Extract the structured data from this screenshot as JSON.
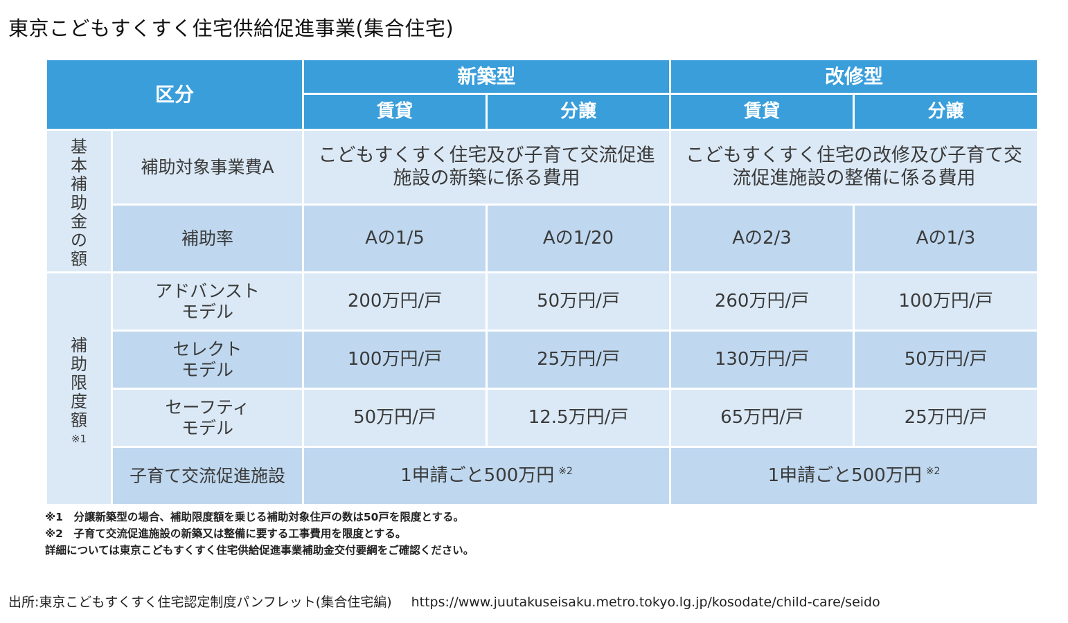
{
  "title": "東京こどもすくすく住宅供給促進事業(集合住宅)",
  "table": {
    "header": {
      "kubun": "区分",
      "shinchiku": "新築型",
      "kaishu": "改修型",
      "chintai": "賃貸",
      "bunjo": "分譲"
    },
    "kihon_group": [
      "基",
      "本",
      "補",
      "助",
      "金",
      "の",
      "額"
    ],
    "gendo_group": [
      "補",
      "助",
      "限",
      "度",
      "額"
    ],
    "gendo_note": "※1",
    "rows": {
      "jigyohi_label": "補助対象事業費A",
      "jigyohi_shinchiku": "こどもすくすく住宅及び子育て交流促進施設の新築に係る費用",
      "jigyohi_kaishu": "こどもすくすく住宅の改修及び子育て交流促進施設の整備に係る費用",
      "ritsu_label": "補助率",
      "ritsu": [
        "Aの1/5",
        "Aの1/20",
        "Aの2/3",
        "Aの1/3"
      ],
      "advanced_label1": "アドバンスト",
      "advanced_label2": "モデル",
      "advanced": [
        "200万円/戸",
        "50万円/戸",
        "260万円/戸",
        "100万円/戸"
      ],
      "select_label1": "セレクト",
      "select_label2": "モデル",
      "select": [
        "100万円/戸",
        "25万円/戸",
        "130万円/戸",
        "50万円/戸"
      ],
      "safety_label1": "セーフティ",
      "safety_label2": "モデル",
      "safety": [
        "50万円/戸",
        "12.5万円/戸",
        "65万円/戸",
        "25万円/戸"
      ],
      "shisetsu_label": "子育て交流促進施設",
      "shisetsu_shinchiku": "1申請ごと500万円",
      "shisetsu_kaishu": "1申請ごと500万円",
      "shisetsu_note": "※2"
    }
  },
  "notes": [
    "※1　分譲新築型の場合、補助限度額を乗じる補助対象住戸の数は50戸を限度とする。",
    "※2　子育て交流促進施設の新築又は整備に要する工事費用を限度とする。",
    "詳細については東京こどもすくすく住宅供給促進事業補助金交付要綱をご確認ください。"
  ],
  "source": {
    "label": "出所:東京こどもすくすく住宅認定制度パンフレット(集合住宅編)",
    "url": "https://www.juutakuseisaku.metro.tokyo.lg.jp/kosodate/child-care/seido"
  },
  "colors": {
    "header": "#3a9edb",
    "light": "#dbe9f6",
    "mid": "#bfd8ef"
  }
}
